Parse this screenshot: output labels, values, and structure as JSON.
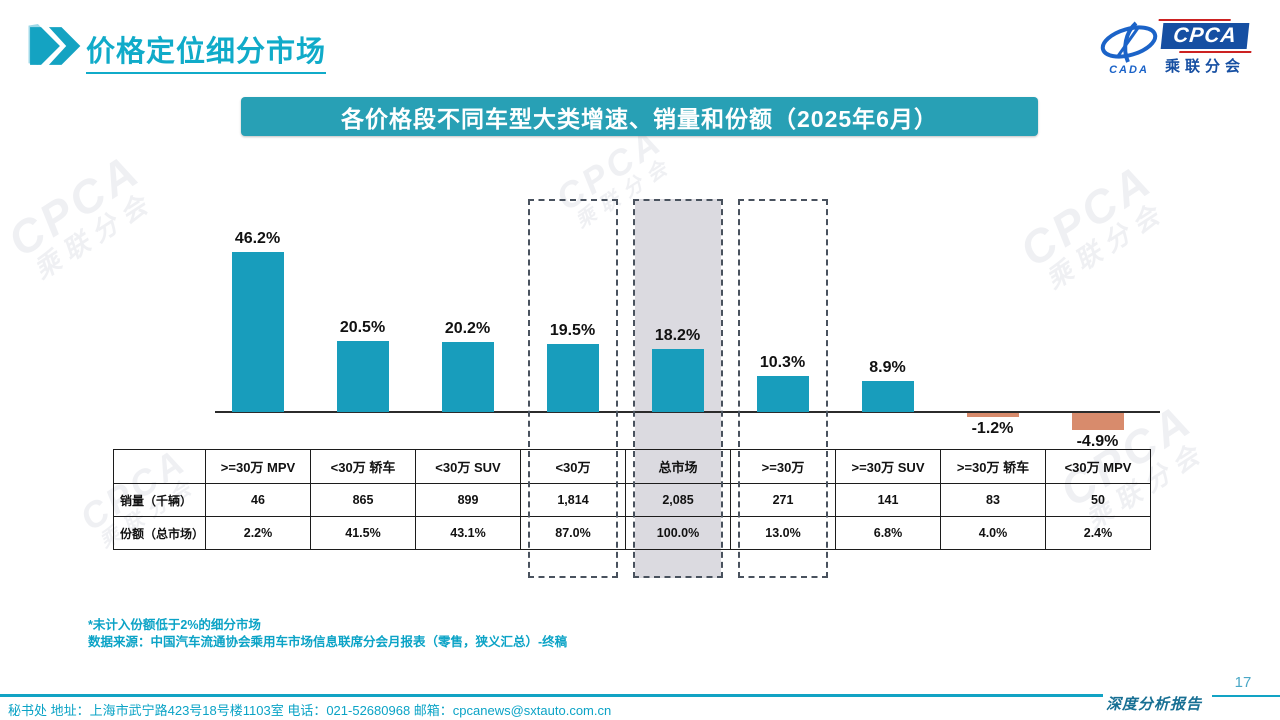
{
  "header": {
    "title": "价格定位细分市场"
  },
  "logo": {
    "cada": "CADA",
    "cpca": "CPCA",
    "sub": "乘联分会"
  },
  "banner": {
    "title": "各价格段不同车型大类增速、销量和份额（2025年6月）"
  },
  "watermark": {
    "line1": "CPCA",
    "line2": "乘联分会"
  },
  "chart_data": {
    "type": "bar",
    "title": "各价格段不同车型大类增速、销量和份额（2025年6月）",
    "categories": [
      ">=30万 MPV",
      "<30万 轿车",
      "<30万 SUV",
      "<30万",
      "总市场",
      ">=30万",
      ">=30万 SUV",
      ">=30万 轿车",
      "<30万 MPV"
    ],
    "values": [
      46.2,
      20.5,
      20.2,
      19.5,
      18.2,
      10.3,
      8.9,
      -1.2,
      -4.9
    ],
    "labels": [
      "46.2%",
      "20.5%",
      "20.2%",
      "19.5%",
      "18.2%",
      "10.3%",
      "8.9%",
      "-1.2%",
      "-4.9%"
    ],
    "highlighted_categories": [
      "<30万",
      "总市场",
      ">=30万"
    ],
    "filled_category": "总市场",
    "bar_color": "#189DBC",
    "negative_bar_color": "#D88B6C",
    "highlight_fill_color": "#DBDAE0",
    "ylim": [
      -10,
      50
    ],
    "grid": false,
    "legend": false
  },
  "table": {
    "columns": [
      ">=30万 MPV",
      "<30万 轿车",
      "<30万 SUV",
      "<30万",
      "总市场",
      ">=30万",
      ">=30万 SUV",
      ">=30万 轿车",
      "<30万 MPV"
    ],
    "rows": [
      {
        "label": "销量（千辆）",
        "values": [
          "46",
          "865",
          "899",
          "1,814",
          "2,085",
          "271",
          "141",
          "83",
          "50"
        ]
      },
      {
        "label": "份额（总市场）",
        "values": [
          "2.2%",
          "41.5%",
          "43.1%",
          "87.0%",
          "100.0%",
          "13.0%",
          "6.8%",
          "4.0%",
          "2.4%"
        ]
      }
    ]
  },
  "notes": {
    "line1": "*未计入份额低于2%的细分市场",
    "line2": "数据来源：中国汽车流通协会乘用车市场信息联席分会月报表（零售，狭义汇总）-终稿"
  },
  "footer": {
    "address": "秘书处  地址：上海市武宁路423号18号楼1103室  电话：021-52680968   邮箱：cpcanews@sxtauto.com.cn",
    "page": "17",
    "report_label": "深度分析报告"
  }
}
